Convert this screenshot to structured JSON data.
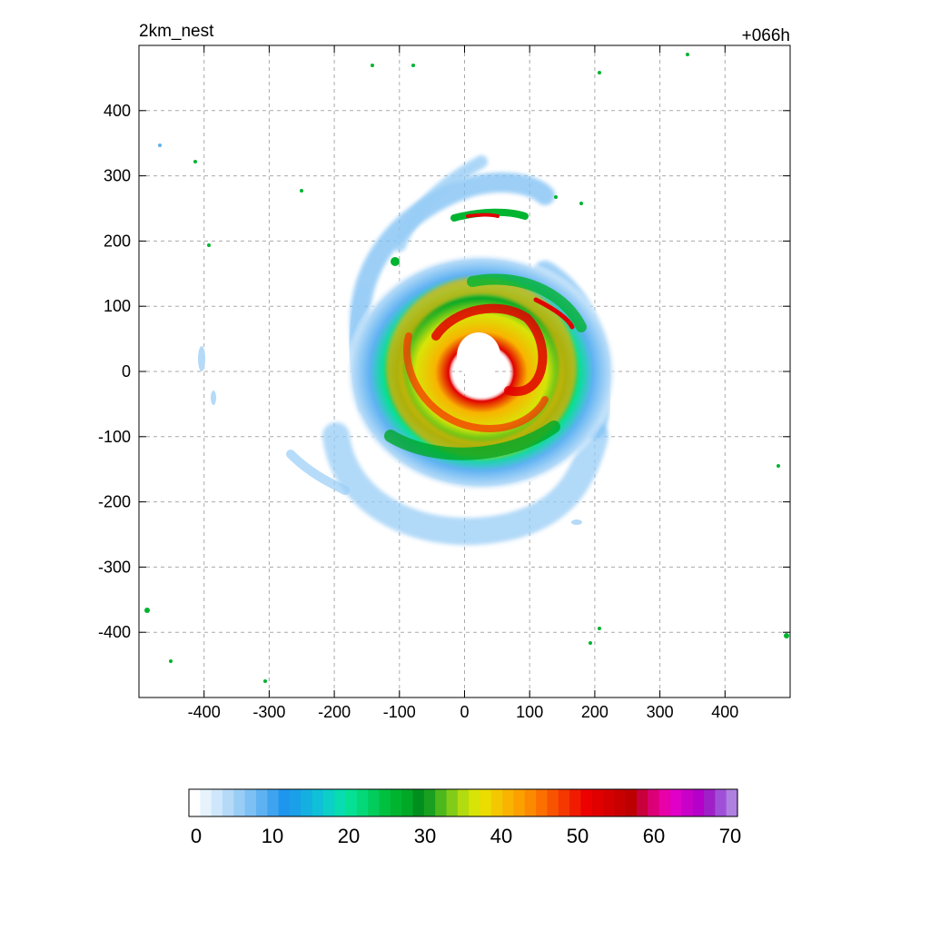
{
  "title_left": "2km_nest",
  "title_right": "+066h",
  "chart_data": {
    "type": "heatmap",
    "title": "",
    "xlabel": "",
    "ylabel": "",
    "xlim": [
      -500,
      500
    ],
    "ylim": [
      -500,
      500
    ],
    "x_ticks": [
      -400,
      -300,
      -200,
      -100,
      0,
      100,
      200,
      300,
      400
    ],
    "y_ticks": [
      -400,
      -300,
      -200,
      -100,
      0,
      100,
      200,
      300,
      400
    ],
    "x_tick_labels": [
      "-400",
      "-300",
      "-200",
      "-100",
      "0",
      "100",
      "200",
      "300",
      "400"
    ],
    "y_tick_labels": [
      "-400",
      "-300",
      "-200",
      "-100",
      "0",
      "100",
      "200",
      "300",
      "400"
    ],
    "grid": true,
    "colorbar": {
      "min": 0,
      "max": 70,
      "ticks": [
        0,
        10,
        20,
        30,
        40,
        50,
        60,
        70
      ],
      "tick_labels": [
        "0",
        "10",
        "20",
        "30",
        "40",
        "50",
        "60",
        "70"
      ],
      "colors": [
        "#ffffff",
        "#e6f3fc",
        "#cfe7fb",
        "#b4daf8",
        "#98cdf6",
        "#7dc0f4",
        "#5fb2f2",
        "#3fa4f0",
        "#1f96ee",
        "#1aa0e8",
        "#14b0e0",
        "#10c0d8",
        "#0ccfc8",
        "#08dcb0",
        "#06e094",
        "#04d878",
        "#02cc5c",
        "#00c040",
        "#00b430",
        "#00a828",
        "#008f1c",
        "#1aa020",
        "#4cb81c",
        "#80cc18",
        "#b2dc10",
        "#d8e408",
        "#ecdc00",
        "#f4c800",
        "#f8b400",
        "#fca000",
        "#fc8a00",
        "#fc7000",
        "#f85400",
        "#f43800",
        "#f01c00",
        "#ec0000",
        "#e00000",
        "#d40000",
        "#c80000",
        "#bc0000",
        "#c8003c",
        "#dc0078",
        "#e800a8",
        "#e000c8",
        "#c800c8",
        "#b400c8",
        "#a020c8",
        "#a050d8",
        "#b080e0"
      ]
    },
    "storm_center": [
      30,
      20
    ],
    "eye_radius": 28,
    "features": [
      {
        "kind": "ring",
        "r_in": 28,
        "r_out": 48,
        "value": 50
      },
      {
        "kind": "ring",
        "r_in": 48,
        "r_out": 90,
        "value": 38
      },
      {
        "kind": "ring",
        "r_in": 90,
        "r_out": 135,
        "value": 24
      },
      {
        "kind": "ring",
        "r_in": 135,
        "r_out": 190,
        "value": 8
      },
      {
        "kind": "outer_band",
        "value": 6
      }
    ]
  }
}
